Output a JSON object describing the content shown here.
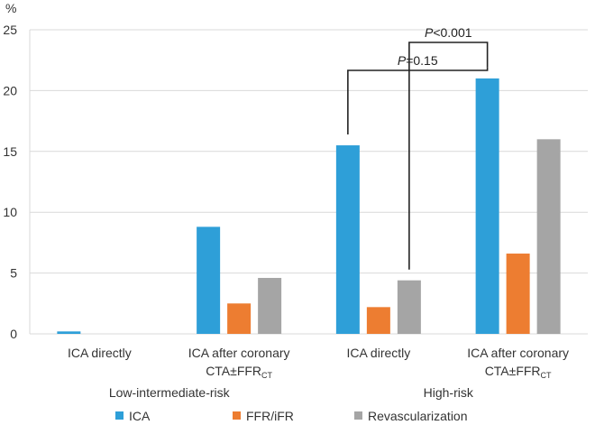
{
  "chart_data": {
    "type": "bar",
    "ylabel": "%",
    "ylim": [
      0,
      25
    ],
    "yticks": [
      "0",
      "5",
      "10",
      "15",
      "20",
      "25"
    ],
    "categories": [
      {
        "line1": "ICA directly",
        "line2": "",
        "line2_sub": "",
        "group": "Low-intermediate-risk"
      },
      {
        "line1": "ICA after coronary",
        "line2": "CTA±FFR",
        "line2_sub": "CT",
        "group": "Low-intermediate-risk"
      },
      {
        "line1": "ICA directly",
        "line2": "",
        "line2_sub": "",
        "group": "High-risk"
      },
      {
        "line1": "ICA after coronary",
        "line2": "CTA±FFR",
        "line2_sub": "CT",
        "group": "High-risk"
      }
    ],
    "groups": [
      "Low-intermediate-risk",
      "High-risk"
    ],
    "series": [
      {
        "name": "ICA",
        "color": "#2E9FD8",
        "values": [
          0.2,
          8.8,
          15.5,
          21.0
        ]
      },
      {
        "name": "FFR/iFR",
        "color": "#ED7D31",
        "values": [
          0,
          2.5,
          2.2,
          6.6
        ]
      },
      {
        "name": "Revascularization",
        "color": "#A5A5A5",
        "values": [
          0,
          4.6,
          4.4,
          16.0
        ]
      }
    ],
    "annotations": [
      {
        "italic": "P",
        "rest": "=0.15",
        "from": [
          2,
          0
        ],
        "to": [
          3,
          0
        ]
      },
      {
        "italic": "P",
        "rest": "<0.001",
        "from": [
          2,
          2
        ],
        "to": [
          3,
          0
        ]
      }
    ]
  }
}
